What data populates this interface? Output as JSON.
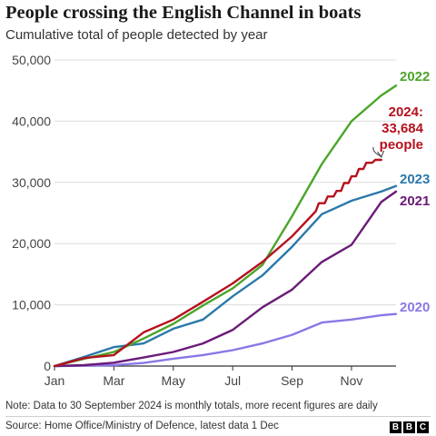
{
  "header": {
    "title": "People crossing the English Channel in boats",
    "subtitle": "Cumulative total of people detected by year"
  },
  "footer": {
    "note": "Note: Data to 30 September 2024 is monthly totals, more recent figures are daily",
    "source": "Source: Home Office/Ministry of Defence, latest data 1 Dec",
    "logo": [
      "B",
      "B",
      "C"
    ]
  },
  "chart_data": {
    "type": "line",
    "title": "People crossing the English Channel in boats",
    "subtitle": "Cumulative total of people detected by year",
    "xlabel": "",
    "ylabel": "",
    "xlim": [
      0,
      11.5
    ],
    "ylim": [
      0,
      50000
    ],
    "x_ticks": [
      {
        "x": 0,
        "label": "Jan"
      },
      {
        "x": 2,
        "label": "Mar"
      },
      {
        "x": 4,
        "label": "May"
      },
      {
        "x": 6,
        "label": "Jul"
      },
      {
        "x": 8,
        "label": "Sep"
      },
      {
        "x": 10,
        "label": "Nov"
      }
    ],
    "y_ticks": [
      {
        "y": 0,
        "label": "0"
      },
      {
        "y": 10000,
        "label": "10,000"
      },
      {
        "y": 20000,
        "label": "20,000"
      },
      {
        "y": 30000,
        "label": "30,000"
      },
      {
        "y": 40000,
        "label": "40,000"
      },
      {
        "y": 50000,
        "label": "50,000"
      }
    ],
    "grid": true,
    "series": [
      {
        "name": "2020",
        "color": "#8a77e6",
        "points": [
          [
            0,
            0
          ],
          [
            1,
            80
          ],
          [
            2,
            150
          ],
          [
            3,
            500
          ],
          [
            4,
            1200
          ],
          [
            5,
            1800
          ],
          [
            6,
            2600
          ],
          [
            7,
            3700
          ],
          [
            8,
            5100
          ],
          [
            9,
            7100
          ],
          [
            10,
            7600
          ],
          [
            11,
            8300
          ],
          [
            11.5,
            8500
          ]
        ]
      },
      {
        "name": "2021",
        "color": "#6b1a78",
        "points": [
          [
            0,
            0
          ],
          [
            1,
            150
          ],
          [
            2,
            550
          ],
          [
            3,
            1400
          ],
          [
            4,
            2300
          ],
          [
            5,
            3700
          ],
          [
            6,
            5900
          ],
          [
            7,
            9600
          ],
          [
            8,
            12500
          ],
          [
            9,
            17000
          ],
          [
            10,
            19800
          ],
          [
            11,
            26800
          ],
          [
            11.5,
            28500
          ]
        ]
      },
      {
        "name": "2023",
        "color": "#2a78a9",
        "points": [
          [
            0,
            0
          ],
          [
            1,
            1500
          ],
          [
            2,
            3100
          ],
          [
            3,
            3700
          ],
          [
            4,
            6100
          ],
          [
            5,
            7600
          ],
          [
            6,
            11400
          ],
          [
            7,
            14800
          ],
          [
            8,
            19500
          ],
          [
            9,
            24800
          ],
          [
            10,
            27000
          ],
          [
            11,
            28500
          ],
          [
            11.5,
            29400
          ]
        ]
      },
      {
        "name": "2022",
        "color": "#4ba52a",
        "points": [
          [
            0,
            0
          ],
          [
            1,
            1200
          ],
          [
            2,
            2300
          ],
          [
            3,
            4500
          ],
          [
            4,
            6900
          ],
          [
            5,
            9900
          ],
          [
            6,
            12700
          ],
          [
            7,
            16500
          ],
          [
            8,
            24500
          ],
          [
            9,
            33000
          ],
          [
            10,
            40000
          ],
          [
            11,
            44200
          ],
          [
            11.5,
            45800
          ]
        ]
      },
      {
        "name": "2024",
        "color": "#b5111d",
        "points": [
          [
            0,
            0
          ],
          [
            1,
            1300
          ],
          [
            2,
            1800
          ],
          [
            3,
            5500
          ],
          [
            4,
            7600
          ],
          [
            5,
            10500
          ],
          [
            6,
            13500
          ],
          [
            7,
            17000
          ],
          [
            8,
            21200
          ],
          [
            8.8,
            25300
          ],
          [
            8.9,
            26600
          ],
          [
            9.1,
            26600
          ],
          [
            9.2,
            27700
          ],
          [
            9.4,
            27700
          ],
          [
            9.5,
            28600
          ],
          [
            9.65,
            28600
          ],
          [
            9.75,
            29900
          ],
          [
            9.9,
            29900
          ],
          [
            10.0,
            31000
          ],
          [
            10.15,
            31000
          ],
          [
            10.25,
            32200
          ],
          [
            10.4,
            32200
          ],
          [
            10.5,
            33200
          ],
          [
            10.7,
            33200
          ],
          [
            10.8,
            33684
          ],
          [
            11.0,
            33684
          ]
        ]
      }
    ],
    "series_labels": [
      {
        "series": "2022",
        "lines": [
          "2022"
        ]
      },
      {
        "series": "2024",
        "lines": [
          "2024:",
          "33,684",
          "people"
        ]
      },
      {
        "series": "2023",
        "lines": [
          "2023"
        ]
      },
      {
        "series": "2021",
        "lines": [
          "2021"
        ]
      },
      {
        "series": "2020",
        "lines": [
          "2020"
        ]
      }
    ]
  }
}
